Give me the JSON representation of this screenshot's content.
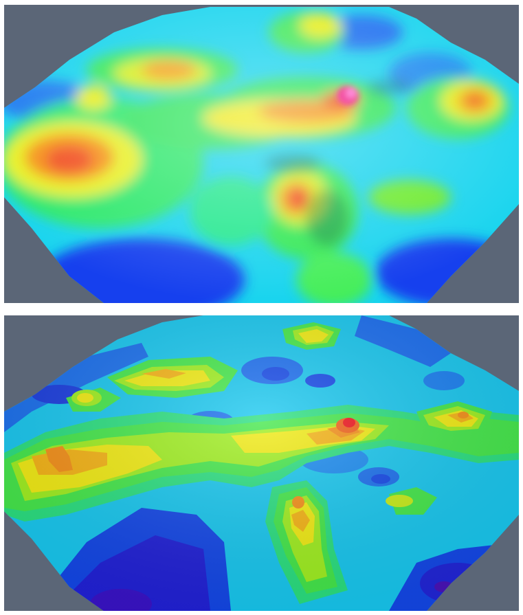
{
  "panels": [
    {
      "id": "smooth-shaded-surface",
      "shading": "smooth",
      "background_color": "#5b6677"
    },
    {
      "id": "banded-contour-surface",
      "shading": "banded",
      "background_color": "#5b6677"
    }
  ],
  "colormap": [
    "#3a1fd6",
    "#0a4cf0",
    "#1aa6f5",
    "#16e0f0",
    "#27ee6a",
    "#a8f020",
    "#f2ee10",
    "#f7b016",
    "#f26418",
    "#f0131c",
    "#f41ca8"
  ]
}
